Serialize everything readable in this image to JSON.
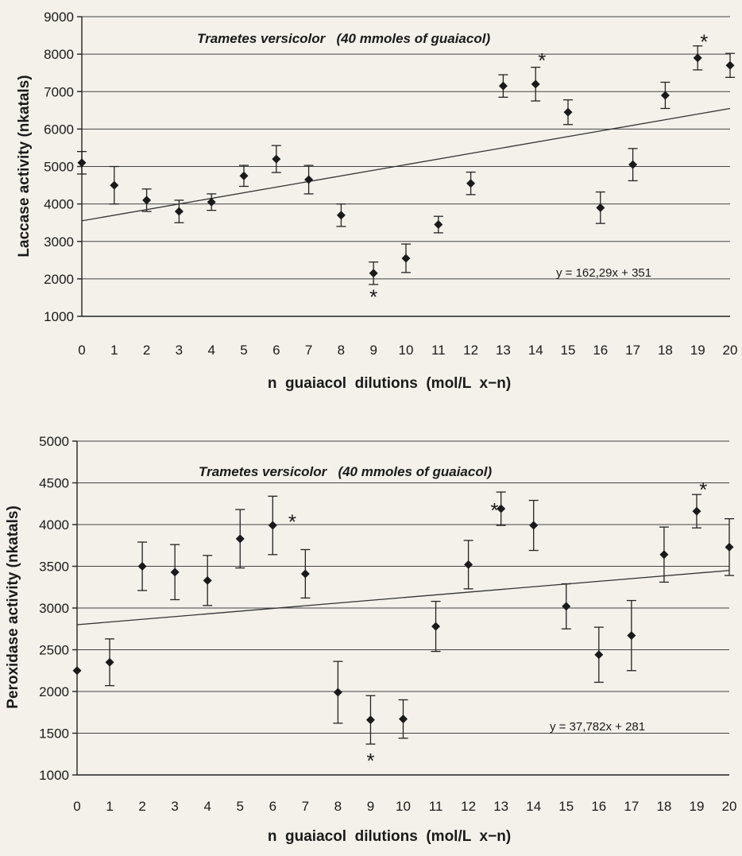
{
  "chart_data": [
    {
      "type": "scatter",
      "title": "Trametes versicolor   (40 mmoles of guaiacol)",
      "ylabel": "Laccase  activity  (nkatals)",
      "xlabel": "n  guaiacol  dilutions  (mol/L  x−n)",
      "equation": "y = 162,29x + 351",
      "ylim": [
        1000,
        9000
      ],
      "yticks": [
        1000,
        2000,
        3000,
        4000,
        5000,
        6000,
        7000,
        8000,
        9000
      ],
      "xticks": [
        0,
        1,
        2,
        3,
        4,
        5,
        6,
        7,
        8,
        9,
        10,
        11,
        12,
        13,
        14,
        15,
        16,
        17,
        18,
        19,
        20
      ],
      "grid": true,
      "x": [
        0,
        1,
        2,
        3,
        4,
        5,
        6,
        7,
        8,
        9,
        10,
        11,
        12,
        13,
        14,
        15,
        16,
        17,
        18,
        19,
        20
      ],
      "y": [
        5100,
        4500,
        4100,
        3800,
        4050,
        4750,
        5200,
        4650,
        3700,
        2150,
        2550,
        3450,
        4550,
        7150,
        7200,
        6450,
        3900,
        5050,
        6900,
        7900,
        7700
      ],
      "error": [
        300,
        500,
        300,
        300,
        220,
        280,
        360,
        380,
        300,
        300,
        380,
        220,
        300,
        300,
        450,
        330,
        420,
        430,
        350,
        320,
        320
      ],
      "trend": {
        "x": [
          0,
          20
        ],
        "y": [
          3550,
          6550
        ]
      },
      "asterisks": [
        {
          "x": 9,
          "y": 1580,
          "label": "*"
        },
        {
          "x": 14.2,
          "y": 7900,
          "label": "*"
        },
        {
          "x": 19.2,
          "y": 8400,
          "label": "*"
        }
      ]
    },
    {
      "type": "scatter",
      "title": "Trametes versicolor   (40 mmoles of guaiacol)",
      "ylabel": "Peroxidase  activity  (nkatals)",
      "xlabel": "n  guaiacol  dilutions  (mol/L  x−n)",
      "equation": "y = 37,782x + 281",
      "ylim": [
        1000,
        5000
      ],
      "yticks": [
        1000,
        1500,
        2000,
        2500,
        3000,
        3500,
        4000,
        4500,
        5000
      ],
      "xticks": [
        0,
        1,
        2,
        3,
        4,
        5,
        6,
        7,
        8,
        9,
        10,
        11,
        12,
        13,
        14,
        15,
        16,
        17,
        18,
        19,
        20
      ],
      "grid": true,
      "x": [
        0,
        1,
        2,
        3,
        4,
        5,
        6,
        7,
        8,
        9,
        10,
        11,
        12,
        13,
        14,
        15,
        16,
        17,
        18,
        19,
        20
      ],
      "y": [
        2250,
        2350,
        3500,
        3430,
        3330,
        3830,
        3990,
        3410,
        1990,
        1660,
        1670,
        2780,
        3520,
        4190,
        3990,
        3020,
        2440,
        2670,
        3640,
        4160,
        3730
      ],
      "error": [
        0,
        280,
        290,
        330,
        300,
        350,
        350,
        290,
        370,
        290,
        230,
        300,
        290,
        200,
        300,
        270,
        330,
        420,
        330,
        200,
        340
      ],
      "trend": {
        "x": [
          0,
          20
        ],
        "y": [
          2800,
          3450
        ]
      },
      "asterisks": [
        {
          "x": 6.6,
          "y": 4060,
          "label": "*"
        },
        {
          "x": 12.8,
          "y": 4200,
          "label": "*"
        },
        {
          "x": 9,
          "y": 1200,
          "label": "*"
        },
        {
          "x": 19.2,
          "y": 4450,
          "label": "*"
        }
      ]
    }
  ]
}
